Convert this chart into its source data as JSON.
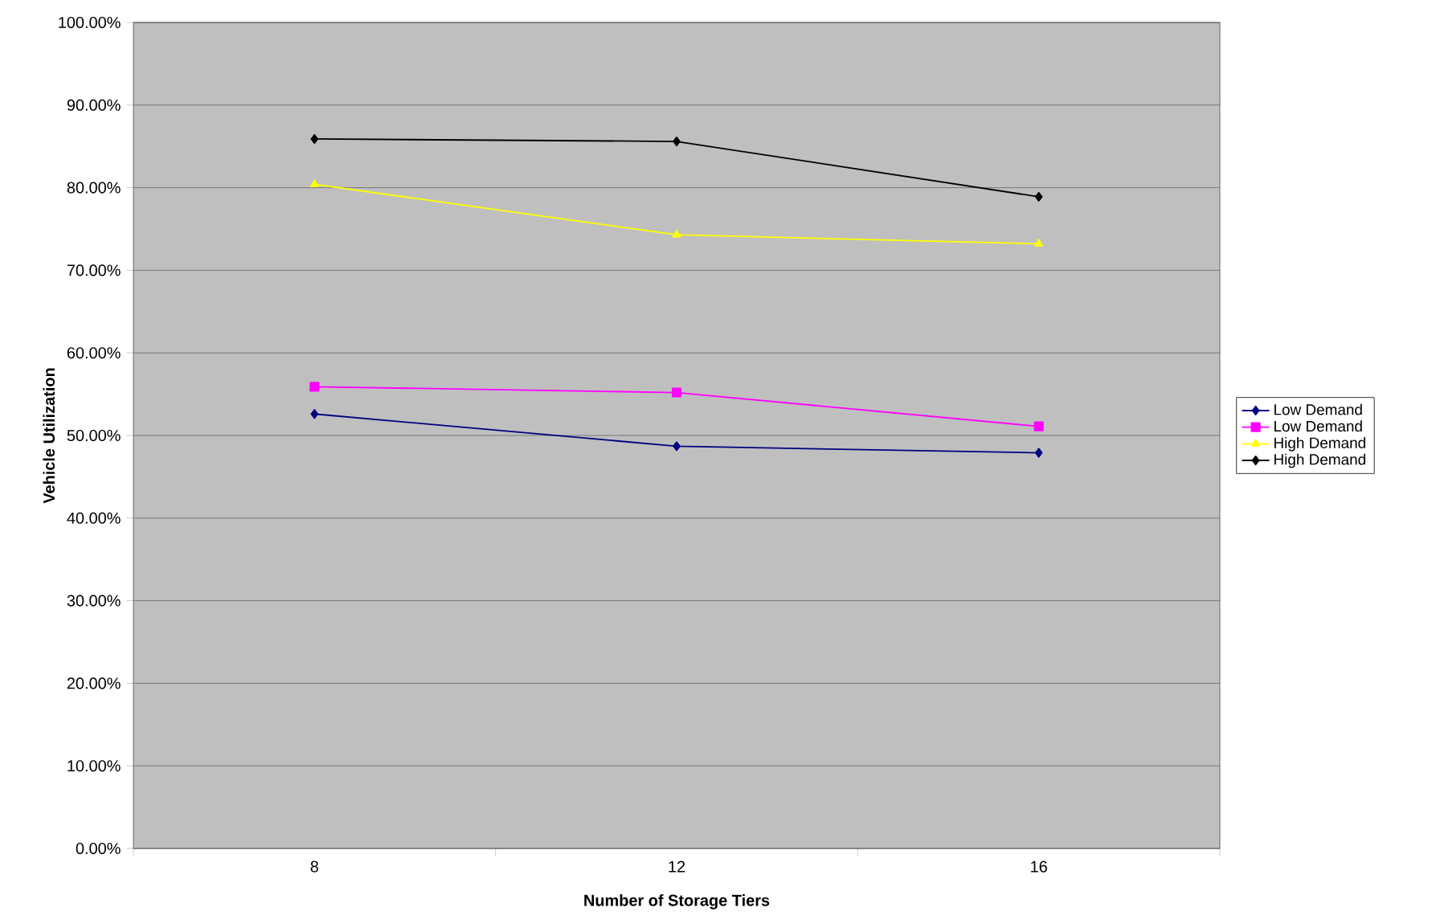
{
  "chart_data": {
    "type": "line",
    "xlabel": "Number of Storage Tiers",
    "ylabel": "Vehicle Utilization",
    "categories": [
      "8",
      "12",
      "16"
    ],
    "series": [
      {
        "name": "Low Demand",
        "color": "#000080",
        "marker": "diamond",
        "values": [
          52.6,
          48.7,
          47.9
        ]
      },
      {
        "name": "Low Demand",
        "color": "#ff00ff",
        "marker": "square",
        "values": [
          55.9,
          55.2,
          51.1
        ]
      },
      {
        "name": "High Demand",
        "color": "#ffff00",
        "marker": "triangle",
        "values": [
          80.4,
          74.3,
          73.2
        ]
      },
      {
        "name": "High Demand",
        "color": "#000000",
        "marker": "diamond",
        "values": [
          85.9,
          85.6,
          78.9
        ]
      }
    ],
    "ylim": [
      0,
      100
    ],
    "yticks": [
      {
        "value": 0,
        "label": "0.00%"
      },
      {
        "value": 10,
        "label": "10.00%"
      },
      {
        "value": 20,
        "label": "20.00%"
      },
      {
        "value": 30,
        "label": "30.00%"
      },
      {
        "value": 40,
        "label": "40.00%"
      },
      {
        "value": 50,
        "label": "50.00%"
      },
      {
        "value": 60,
        "label": "60.00%"
      },
      {
        "value": 70,
        "label": "70.00%"
      },
      {
        "value": 80,
        "label": "80.00%"
      },
      {
        "value": 90,
        "label": "90.00%"
      },
      {
        "value": 100,
        "label": "100.00%"
      }
    ],
    "grid": "y",
    "legend": "right",
    "line_style": "solid"
  }
}
